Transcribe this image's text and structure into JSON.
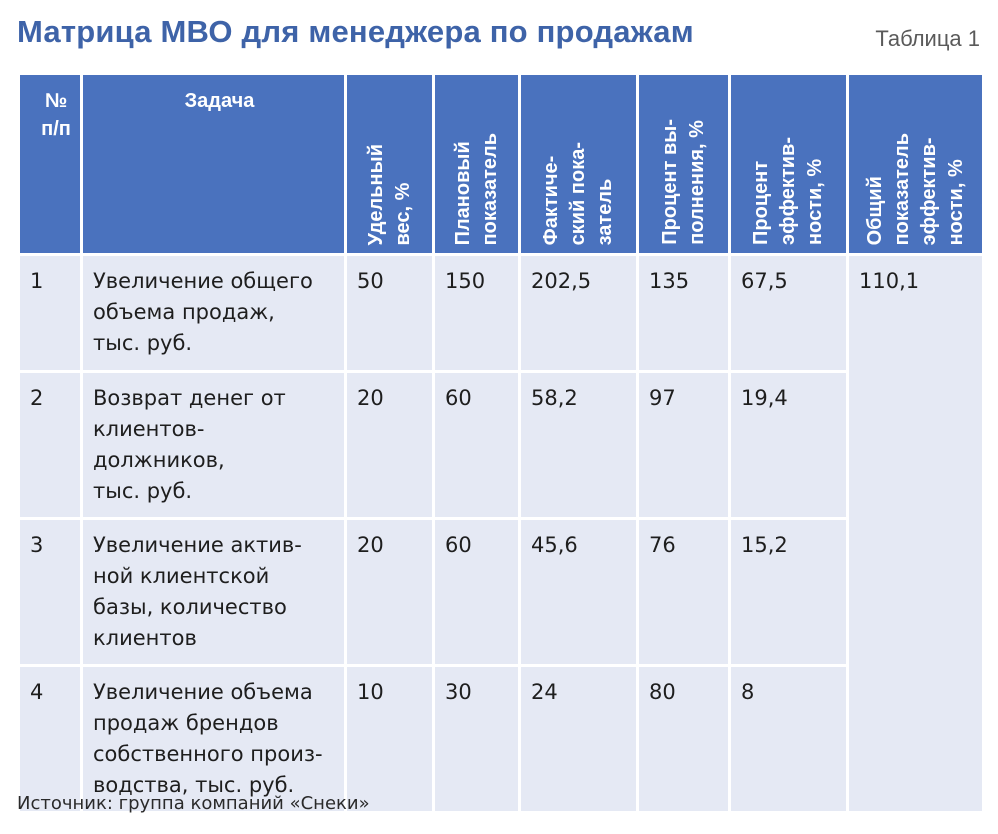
{
  "title": "Матрица МВО для менеджера по продажам",
  "table_label": "Таблица 1",
  "headers": {
    "num": "№\nп/п",
    "task": "Задача",
    "weight": "Удельный\nвес, %",
    "plan": "Плановый\nпоказатель",
    "fact": "Фактиче-\nский пока-\nзатель",
    "completion": "Процент вы-\nполнения, %",
    "efficiency": "Процент\nэффектив-\nности, %",
    "total": "Общий\nпоказатель\nэффектив-\nности, %"
  },
  "rows": [
    {
      "num": "1",
      "task": "Увеличение общего\nобъема продаж,\nтыс. руб.",
      "weight": "50",
      "plan": "150",
      "fact": "202,5",
      "completion": "135",
      "efficiency": "67,5"
    },
    {
      "num": "2",
      "task": "Возврат денег от\nклиентов-должников,\nтыс. руб.",
      "weight": "20",
      "plan": "60",
      "fact": "58,2",
      "completion": "97",
      "efficiency": "19,4"
    },
    {
      "num": "3",
      "task": "Увеличение актив-\nной клиентской\nбазы, количество\nклиентов",
      "weight": "20",
      "plan": "60",
      "fact": "45,6",
      "completion": "76",
      "efficiency": "15,2"
    },
    {
      "num": "4",
      "task": "Увеличение объема\nпродаж брендов\nсобственного произ-\nводства, тыс. руб.",
      "weight": "10",
      "plan": "30",
      "fact": "24",
      "completion": "80",
      "efficiency": "8"
    }
  ],
  "total_value": "110,1",
  "source": "Источник: группа компаний «Снеки»",
  "colors": {
    "title": "#3e63a8",
    "header_bg": "#4a72be",
    "cell_bg": "#e5e9f4"
  }
}
